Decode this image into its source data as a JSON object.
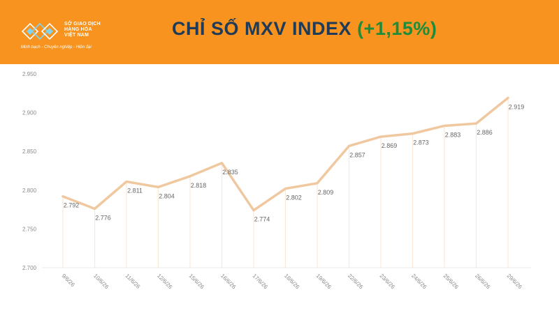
{
  "header": {
    "bg_color": "#f7931e",
    "logo_line1": "SỞ GIAO DỊCH",
    "logo_line2": "HÀNG HÓA",
    "logo_line3": "VIỆT NAM",
    "logo_tagline": "Minh bạch - Chuyên nghiệp - Hiện đại",
    "title": "CHỈ SỐ MXV INDEX",
    "change": "(+1,15%)",
    "title_color": "#1f3b57",
    "change_color": "#1e8c3a"
  },
  "chart_data": {
    "type": "line",
    "categories": [
      "9/6/26",
      "10/6/26",
      "11/6/26",
      "12/6/26",
      "15/6/26",
      "16/6/26",
      "17/6/26",
      "18/6/26",
      "19/6/26",
      "22/6/26",
      "23/6/26",
      "24/6/26",
      "25/6/26",
      "26/6/26",
      "29/6/26"
    ],
    "values": [
      2792,
      2776,
      2811,
      2804,
      2818,
      2835,
      2774,
      2802,
      2809,
      2857,
      2869,
      2873,
      2883,
      2886,
      2919
    ],
    "value_labels": [
      "2.792",
      "2.776",
      "2.811",
      "2.804",
      "2.818",
      "2.835",
      "2.774",
      "2.802",
      "2.809",
      "2.857",
      "2.869",
      "2.873",
      "2.883",
      "2.886",
      "2.919"
    ],
    "ylim": [
      2700,
      2950
    ],
    "yticks": [
      2700,
      2750,
      2800,
      2850,
      2900,
      2950
    ],
    "ytick_labels": [
      "2.700",
      "2.750",
      "2.800",
      "2.850",
      "2.900",
      "2.950"
    ],
    "line_color": "#f0c8a0",
    "grid": false,
    "title": "",
    "xlabel": "",
    "ylabel": ""
  }
}
